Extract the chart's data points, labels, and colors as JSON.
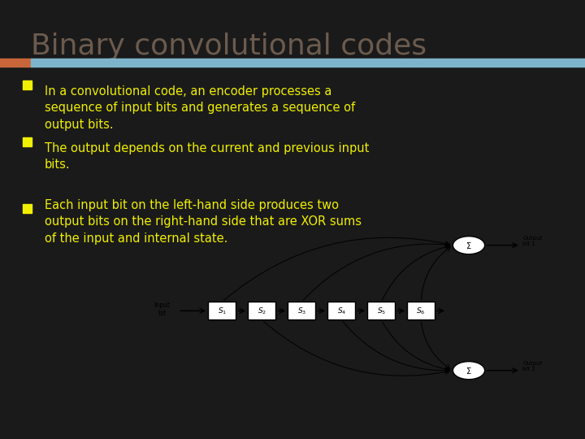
{
  "title": "Binary convolutional codes",
  "title_color": "#6b5b4e",
  "bg_color": "#1a1a1a",
  "header_bar_color": "#7eb4cb",
  "header_accent_color": "#c8663a",
  "bullet_color": "#f0f000",
  "bullet_text_color": "#f0f000",
  "bullets": [
    "In a convolutional code, an encoder processes a\nsequence of input bits and generates a sequence of\noutput bits.",
    "The output depends on the current and previous input\nbits.",
    "Each input bit on the left-hand side produces two\noutput bits on the right-hand side that are XOR sums\nof the input and internal state."
  ]
}
